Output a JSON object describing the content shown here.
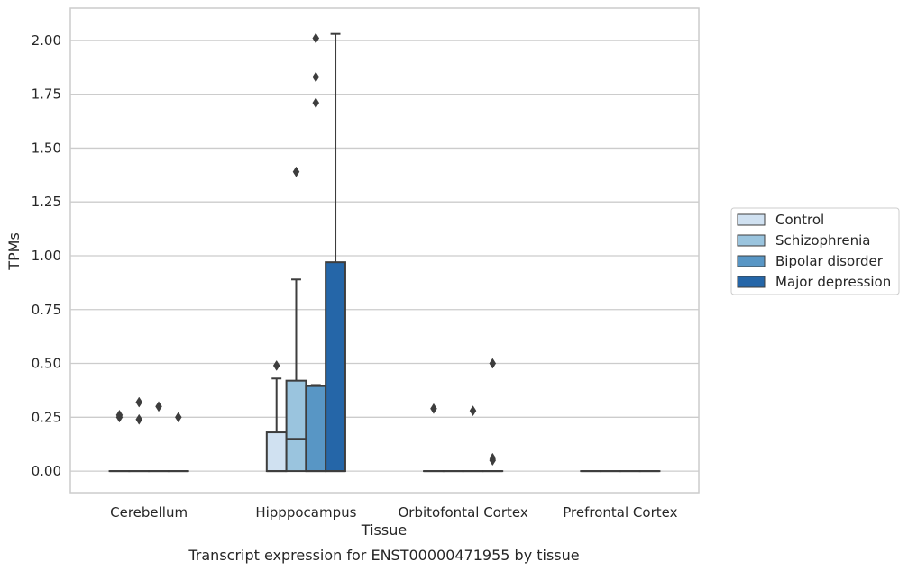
{
  "chart_data": {
    "type": "box",
    "title": "",
    "caption": "Transcript expression for ENST00000471955 by tissue",
    "xlabel": "Tissue",
    "ylabel": "TPMs",
    "ylim": [
      -0.1,
      2.15
    ],
    "yticks": [
      0.0,
      0.25,
      0.5,
      0.75,
      1.0,
      1.25,
      1.5,
      1.75,
      2.0
    ],
    "ytick_labels": [
      "0.00",
      "0.25",
      "0.50",
      "0.75",
      "1.00",
      "1.25",
      "1.50",
      "1.75",
      "2.00"
    ],
    "grid": "horizontal",
    "legend_position": "right",
    "categories": [
      "Cerebellum",
      "Hipppocampus",
      "Orbitofontal Cortex",
      "Prefrontal Cortex"
    ],
    "series": [
      {
        "name": "Control",
        "color": "#d0e1f1",
        "boxes": [
          {
            "q1": 0,
            "median": 0,
            "q3": 0,
            "whisker_low": 0,
            "whisker_high": 0,
            "outliers": [
              0.25,
              0.26
            ]
          },
          {
            "q1": 0,
            "median": 0,
            "q3": 0.18,
            "whisker_low": 0,
            "whisker_high": 0.43,
            "outliers": [
              0.49
            ]
          },
          {
            "q1": 0,
            "median": 0,
            "q3": 0,
            "whisker_low": 0,
            "whisker_high": 0,
            "outliers": [
              0.29
            ]
          },
          {
            "q1": 0,
            "median": 0,
            "q3": 0,
            "whisker_low": 0,
            "whisker_high": 0,
            "outliers": []
          }
        ]
      },
      {
        "name": "Schizophrenia",
        "color": "#9ac4de",
        "boxes": [
          {
            "q1": 0,
            "median": 0,
            "q3": 0,
            "whisker_low": 0,
            "whisker_high": 0,
            "outliers": [
              0.24,
              0.32
            ]
          },
          {
            "q1": 0,
            "median": 0.15,
            "q3": 0.42,
            "whisker_low": 0,
            "whisker_high": 0.89,
            "outliers": [
              1.39
            ]
          },
          {
            "q1": 0,
            "median": 0,
            "q3": 0,
            "whisker_low": 0,
            "whisker_high": 0,
            "outliers": []
          },
          {
            "q1": 0,
            "median": 0,
            "q3": 0,
            "whisker_low": 0,
            "whisker_high": 0,
            "outliers": []
          }
        ]
      },
      {
        "name": "Bipolar disorder",
        "color": "#5896c5",
        "boxes": [
          {
            "q1": 0,
            "median": 0,
            "q3": 0,
            "whisker_low": 0,
            "whisker_high": 0,
            "outliers": [
              0.3
            ]
          },
          {
            "q1": 0,
            "median": 0,
            "q3": 0.395,
            "whisker_low": 0,
            "whisker_high": 0.4,
            "outliers": [
              1.71,
              1.83,
              2.01
            ]
          },
          {
            "q1": 0,
            "median": 0,
            "q3": 0,
            "whisker_low": 0,
            "whisker_high": 0,
            "outliers": [
              0.28
            ]
          },
          {
            "q1": 0,
            "median": 0,
            "q3": 0,
            "whisker_low": 0,
            "whisker_high": 0,
            "outliers": []
          }
        ]
      },
      {
        "name": "Major depression",
        "color": "#2566a8",
        "boxes": [
          {
            "q1": 0,
            "median": 0,
            "q3": 0,
            "whisker_low": 0,
            "whisker_high": 0,
            "outliers": [
              0.25
            ]
          },
          {
            "q1": 0,
            "median": 0,
            "q3": 0.97,
            "whisker_low": 0,
            "whisker_high": 2.03,
            "outliers": []
          },
          {
            "q1": 0,
            "median": 0,
            "q3": 0,
            "whisker_low": 0,
            "whisker_high": 0,
            "outliers": [
              0.05,
              0.06,
              0.5
            ]
          },
          {
            "q1": 0,
            "median": 0,
            "q3": 0,
            "whisker_low": 0,
            "whisker_high": 0,
            "outliers": []
          }
        ]
      }
    ]
  }
}
